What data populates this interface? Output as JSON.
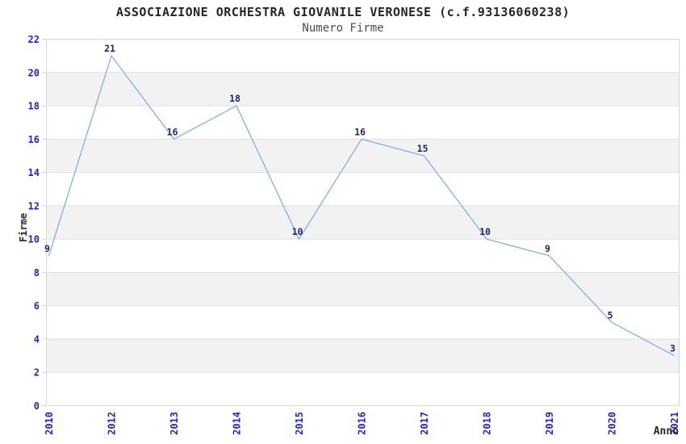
{
  "chart_data": {
    "type": "line",
    "title": "ASSOCIAZIONE ORCHESTRA GIOVANILE VERONESE (c.f.93136060238)",
    "subtitle": "Numero Firme",
    "xlabel": "Anno",
    "ylabel": "Firme",
    "categories": [
      "2010",
      "2012",
      "2013",
      "2014",
      "2015",
      "2016",
      "2017",
      "2018",
      "2019",
      "2020",
      "2021"
    ],
    "values": [
      9,
      21,
      16,
      18,
      10,
      16,
      15,
      10,
      9,
      5,
      3
    ],
    "ylim": [
      0,
      22
    ],
    "yticks": [
      0,
      2,
      4,
      6,
      8,
      10,
      12,
      14,
      16,
      18,
      20,
      22
    ],
    "grid": "horizontal-bands-alternating",
    "legend": "none",
    "point_labels_visible": true,
    "colors": {
      "line": "#7FB1E5",
      "tick_label": "#2323CE",
      "point_label": "#232370",
      "band": "#F2F2F2",
      "gridline": "#E1E1E1",
      "frame": "#D6D6D6",
      "tick_mark": "#C9C9C9",
      "title": "#262626",
      "subtitle": "#4A4A4A",
      "axis_title": "#262626"
    }
  }
}
